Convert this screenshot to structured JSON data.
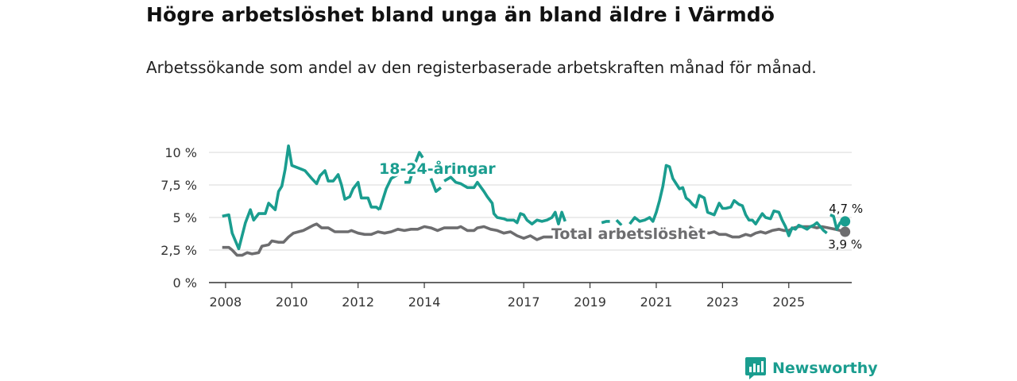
{
  "header": {
    "title": "Högre arbetslöshet bland unga än bland äldre i Värmdö",
    "subtitle": "Arbetssökande som andel av den registerbaserade arbetskraften månad för månad."
  },
  "brand": {
    "name": "Newsworthy",
    "icon": "newsworthy-logo-icon",
    "color": "#1a9d8f"
  },
  "chart_data": {
    "type": "line",
    "title": "Högre arbetslöshet bland unga än bland äldre i Värmdö",
    "xlabel": "",
    "ylabel": "",
    "xlim": [
      2007.5,
      2026.9
    ],
    "ylim": [
      0,
      10
    ],
    "yticks": [
      0,
      2.5,
      5,
      7.5,
      10
    ],
    "ytick_labels": [
      "0 %",
      "2,5 %",
      "5 %",
      "7,5 %",
      "10 %"
    ],
    "xticks": [
      2008,
      2010,
      2012,
      2014,
      2017,
      2019,
      2021,
      2023,
      2025
    ],
    "xtick_labels": [
      "2008",
      "2010",
      "2012",
      "2014",
      "2017",
      "2019",
      "2021",
      "2023",
      "2025"
    ],
    "grid": true,
    "series": [
      {
        "name": "18-24-åringar",
        "label": "18-24-åringar",
        "color": "#1a9d8f",
        "end_label": "4,7 %",
        "segments": [
          [
            [
              2007.9,
              5.1
            ],
            [
              2008.1,
              5.2
            ],
            [
              2008.2,
              3.8
            ],
            [
              2008.4,
              2.6
            ],
            [
              2008.6,
              4.6
            ],
            [
              2008.75,
              5.6
            ],
            [
              2008.85,
              4.8
            ],
            [
              2009.0,
              5.3
            ],
            [
              2009.2,
              5.3
            ],
            [
              2009.3,
              6.1
            ],
            [
              2009.5,
              5.6
            ],
            [
              2009.6,
              7.0
            ],
            [
              2009.7,
              7.4
            ],
            [
              2009.8,
              8.7
            ],
            [
              2009.9,
              10.5
            ],
            [
              2010.0,
              9.0
            ],
            [
              2010.2,
              8.8
            ],
            [
              2010.4,
              8.6
            ],
            [
              2010.6,
              8.0
            ],
            [
              2010.75,
              7.6
            ],
            [
              2010.85,
              8.2
            ],
            [
              2011.0,
              8.6
            ],
            [
              2011.1,
              7.8
            ],
            [
              2011.25,
              7.8
            ],
            [
              2011.4,
              8.3
            ],
            [
              2011.5,
              7.5
            ],
            [
              2011.6,
              6.4
            ],
            [
              2011.75,
              6.6
            ],
            [
              2011.85,
              7.2
            ],
            [
              2012.0,
              7.7
            ],
            [
              2012.1,
              6.5
            ],
            [
              2012.3,
              6.5
            ],
            [
              2012.4,
              5.8
            ],
            [
              2012.55,
              5.8
            ],
            [
              2012.65,
              5.6
            ]
          ],
          [
            [
              2012.65,
              5.6
            ],
            [
              2012.85,
              7.2
            ],
            [
              2013.0,
              8.0
            ],
            [
              2013.2,
              8.3
            ]
          ],
          [
            [
              2013.4,
              7.7
            ],
            [
              2013.55,
              7.7
            ],
            [
              2013.7,
              9.0
            ],
            [
              2013.85,
              10.0
            ],
            [
              2013.95,
              9.6
            ]
          ],
          [
            [
              2014.2,
              8.0
            ],
            [
              2014.35,
              7.0
            ],
            [
              2014.5,
              7.3
            ]
          ],
          [
            [
              2014.6,
              7.8
            ],
            [
              2014.8,
              8.1
            ],
            [
              2014.95,
              7.7
            ],
            [
              2015.1,
              7.6
            ],
            [
              2015.3,
              7.3
            ],
            [
              2015.5,
              7.3
            ],
            [
              2015.6,
              7.7
            ],
            [
              2015.8,
              7.0
            ],
            [
              2015.9,
              6.6
            ],
            [
              2016.05,
              6.1
            ],
            [
              2016.1,
              5.3
            ],
            [
              2016.2,
              5.0
            ],
            [
              2016.4,
              4.9
            ],
            [
              2016.5,
              4.8
            ],
            [
              2016.7,
              4.8
            ],
            [
              2016.8,
              4.6
            ],
            [
              2016.9,
              5.3
            ],
            [
              2017.0,
              5.2
            ],
            [
              2017.1,
              4.8
            ],
            [
              2017.25,
              4.5
            ],
            [
              2017.4,
              4.8
            ],
            [
              2017.55,
              4.7
            ],
            [
              2017.7,
              4.8
            ],
            [
              2017.85,
              5.0
            ],
            [
              2017.95,
              5.4
            ],
            [
              2018.05,
              4.5
            ],
            [
              2018.15,
              5.4
            ],
            [
              2018.25,
              4.7
            ]
          ],
          [
            [
              2018.8,
              3.3
            ],
            [
              2018.9,
              3.3
            ]
          ],
          [
            [
              2019.35,
              4.6
            ],
            [
              2019.5,
              4.7
            ],
            [
              2019.6,
              4.7
            ]
          ],
          [
            [
              2019.8,
              4.8
            ],
            [
              2019.95,
              4.4
            ]
          ],
          [
            [
              2020.2,
              4.5
            ],
            [
              2020.35,
              5.0
            ],
            [
              2020.5,
              4.7
            ],
            [
              2020.65,
              4.8
            ],
            [
              2020.8,
              5.0
            ],
            [
              2020.9,
              4.7
            ],
            [
              2021.0,
              5.4
            ],
            [
              2021.1,
              6.3
            ],
            [
              2021.2,
              7.4
            ],
            [
              2021.3,
              9.0
            ],
            [
              2021.4,
              8.9
            ],
            [
              2021.5,
              8.0
            ],
            [
              2021.6,
              7.6
            ],
            [
              2021.7,
              7.2
            ],
            [
              2021.8,
              7.3
            ],
            [
              2021.9,
              6.5
            ],
            [
              2022.0,
              6.3
            ],
            [
              2022.1,
              6.0
            ],
            [
              2022.2,
              5.8
            ],
            [
              2022.3,
              6.7
            ],
            [
              2022.45,
              6.5
            ],
            [
              2022.55,
              5.4
            ],
            [
              2022.65,
              5.3
            ],
            [
              2022.75,
              5.2
            ],
            [
              2022.9,
              6.1
            ],
            [
              2023.0,
              5.7
            ],
            [
              2023.1,
              5.7
            ],
            [
              2023.25,
              5.8
            ],
            [
              2023.35,
              6.3
            ],
            [
              2023.5,
              6.0
            ],
            [
              2023.6,
              5.9
            ],
            [
              2023.7,
              5.2
            ],
            [
              2023.8,
              4.8
            ],
            [
              2023.9,
              4.8
            ],
            [
              2024.0,
              4.5
            ],
            [
              2024.1,
              4.9
            ],
            [
              2024.2,
              5.3
            ],
            [
              2024.3,
              5.0
            ],
            [
              2024.45,
              4.9
            ],
            [
              2024.55,
              5.5
            ],
            [
              2024.7,
              5.4
            ],
            [
              2024.8,
              4.8
            ],
            [
              2024.9,
              4.3
            ],
            [
              2025.0,
              3.6
            ],
            [
              2025.1,
              4.2
            ],
            [
              2025.2,
              4.1
            ],
            [
              2025.3,
              4.4
            ],
            [
              2025.4,
              4.3
            ],
            [
              2025.55,
              4.1
            ],
            [
              2025.65,
              4.3
            ],
            [
              2025.75,
              4.4
            ],
            [
              2025.85,
              4.6
            ],
            [
              2025.95,
              4.3
            ],
            [
              2026.05,
              4.0
            ],
            [
              2026.15,
              3.8
            ]
          ],
          [
            [
              2026.25,
              5.2
            ],
            [
              2026.35,
              5.1
            ],
            [
              2026.45,
              4.1
            ],
            [
              2026.55,
              4.6
            ],
            [
              2026.65,
              4.6
            ],
            [
              2026.7,
              4.7
            ]
          ]
        ]
      },
      {
        "name": "Total arbetslöshet",
        "label": "Total arbetslöshet",
        "color": "#6d6d6f",
        "end_label": "3,9 %",
        "segments": [
          [
            [
              2007.9,
              2.7
            ],
            [
              2008.1,
              2.7
            ],
            [
              2008.2,
              2.5
            ],
            [
              2008.35,
              2.1
            ],
            [
              2008.5,
              2.1
            ],
            [
              2008.65,
              2.3
            ],
            [
              2008.8,
              2.2
            ],
            [
              2009.0,
              2.3
            ],
            [
              2009.1,
              2.8
            ],
            [
              2009.3,
              2.9
            ],
            [
              2009.4,
              3.2
            ],
            [
              2009.6,
              3.1
            ],
            [
              2009.75,
              3.1
            ],
            [
              2009.9,
              3.5
            ],
            [
              2010.05,
              3.8
            ],
            [
              2010.2,
              3.9
            ],
            [
              2010.35,
              4.0
            ],
            [
              2010.5,
              4.2
            ],
            [
              2010.65,
              4.4
            ],
            [
              2010.75,
              4.5
            ],
            [
              2010.9,
              4.2
            ],
            [
              2011.1,
              4.2
            ],
            [
              2011.3,
              3.9
            ],
            [
              2011.5,
              3.9
            ],
            [
              2011.7,
              3.9
            ],
            [
              2011.8,
              4.0
            ],
            [
              2012.0,
              3.8
            ],
            [
              2012.2,
              3.7
            ],
            [
              2012.4,
              3.7
            ],
            [
              2012.6,
              3.9
            ],
            [
              2012.8,
              3.8
            ],
            [
              2013.0,
              3.9
            ],
            [
              2013.2,
              4.1
            ],
            [
              2013.4,
              4.0
            ],
            [
              2013.6,
              4.1
            ],
            [
              2013.8,
              4.1
            ],
            [
              2014.0,
              4.3
            ],
            [
              2014.2,
              4.2
            ],
            [
              2014.4,
              4.0
            ],
            [
              2014.6,
              4.2
            ],
            [
              2014.8,
              4.2
            ],
            [
              2015.0,
              4.2
            ],
            [
              2015.1,
              4.3
            ],
            [
              2015.3,
              4.0
            ],
            [
              2015.5,
              4.0
            ],
            [
              2015.6,
              4.2
            ],
            [
              2015.8,
              4.3
            ],
            [
              2016.0,
              4.1
            ],
            [
              2016.2,
              4.0
            ],
            [
              2016.4,
              3.8
            ],
            [
              2016.6,
              3.9
            ],
            [
              2016.8,
              3.6
            ],
            [
              2017.0,
              3.4
            ],
            [
              2017.2,
              3.6
            ],
            [
              2017.4,
              3.3
            ],
            [
              2017.6,
              3.5
            ],
            [
              2017.8,
              3.5
            ],
            [
              2018.0,
              3.5
            ],
            [
              2018.2,
              3.5
            ],
            [
              2018.4,
              3.9
            ]
          ],
          [
            [
              2022.0,
              4.3
            ],
            [
              2022.2,
              4.0
            ],
            [
              2022.4,
              3.9
            ],
            [
              2022.6,
              3.8
            ],
            [
              2022.75,
              3.9
            ],
            [
              2022.9,
              3.7
            ],
            [
              2023.1,
              3.7
            ],
            [
              2023.3,
              3.5
            ],
            [
              2023.5,
              3.5
            ],
            [
              2023.7,
              3.7
            ],
            [
              2023.85,
              3.6
            ],
            [
              2024.0,
              3.8
            ],
            [
              2024.15,
              3.9
            ],
            [
              2024.3,
              3.8
            ],
            [
              2024.5,
              4.0
            ],
            [
              2024.7,
              4.1
            ],
            [
              2024.85,
              4.0
            ],
            [
              2025.0,
              4.0
            ],
            [
              2025.15,
              4.2
            ],
            [
              2025.3,
              4.3
            ],
            [
              2025.5,
              4.3
            ],
            [
              2025.7,
              4.3
            ],
            [
              2025.85,
              4.2
            ],
            [
              2026.0,
              4.3
            ],
            [
              2026.2,
              4.2
            ],
            [
              2026.4,
              4.1
            ],
            [
              2026.55,
              4.0
            ],
            [
              2026.7,
              3.9
            ]
          ]
        ]
      }
    ]
  }
}
